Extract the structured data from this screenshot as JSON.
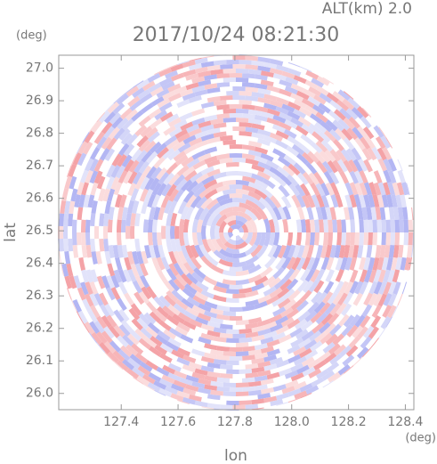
{
  "chart_data": {
    "type": "radar-ppi",
    "title": "2017/10/24 08:21:30",
    "subtitle": "ALT(km) 2.0",
    "y_unit": "(deg)",
    "x_unit": "(deg)",
    "ylabel": "lat",
    "xlabel": "lon",
    "xlim": [
      127.18,
      128.43
    ],
    "ylim": [
      25.95,
      27.04
    ],
    "xticks": [
      127.4,
      127.6,
      127.8,
      {
        "value": 128,
        "label": "128.0"
      },
      128.2,
      128.4
    ],
    "yticks": [
      {
        "value": 26,
        "label": "26.0"
      },
      26.1,
      26.2,
      26.3,
      26.4,
      26.5,
      26.6,
      26.7,
      26.8,
      26.9,
      {
        "value": 27,
        "label": "27.0"
      }
    ]
  }
}
